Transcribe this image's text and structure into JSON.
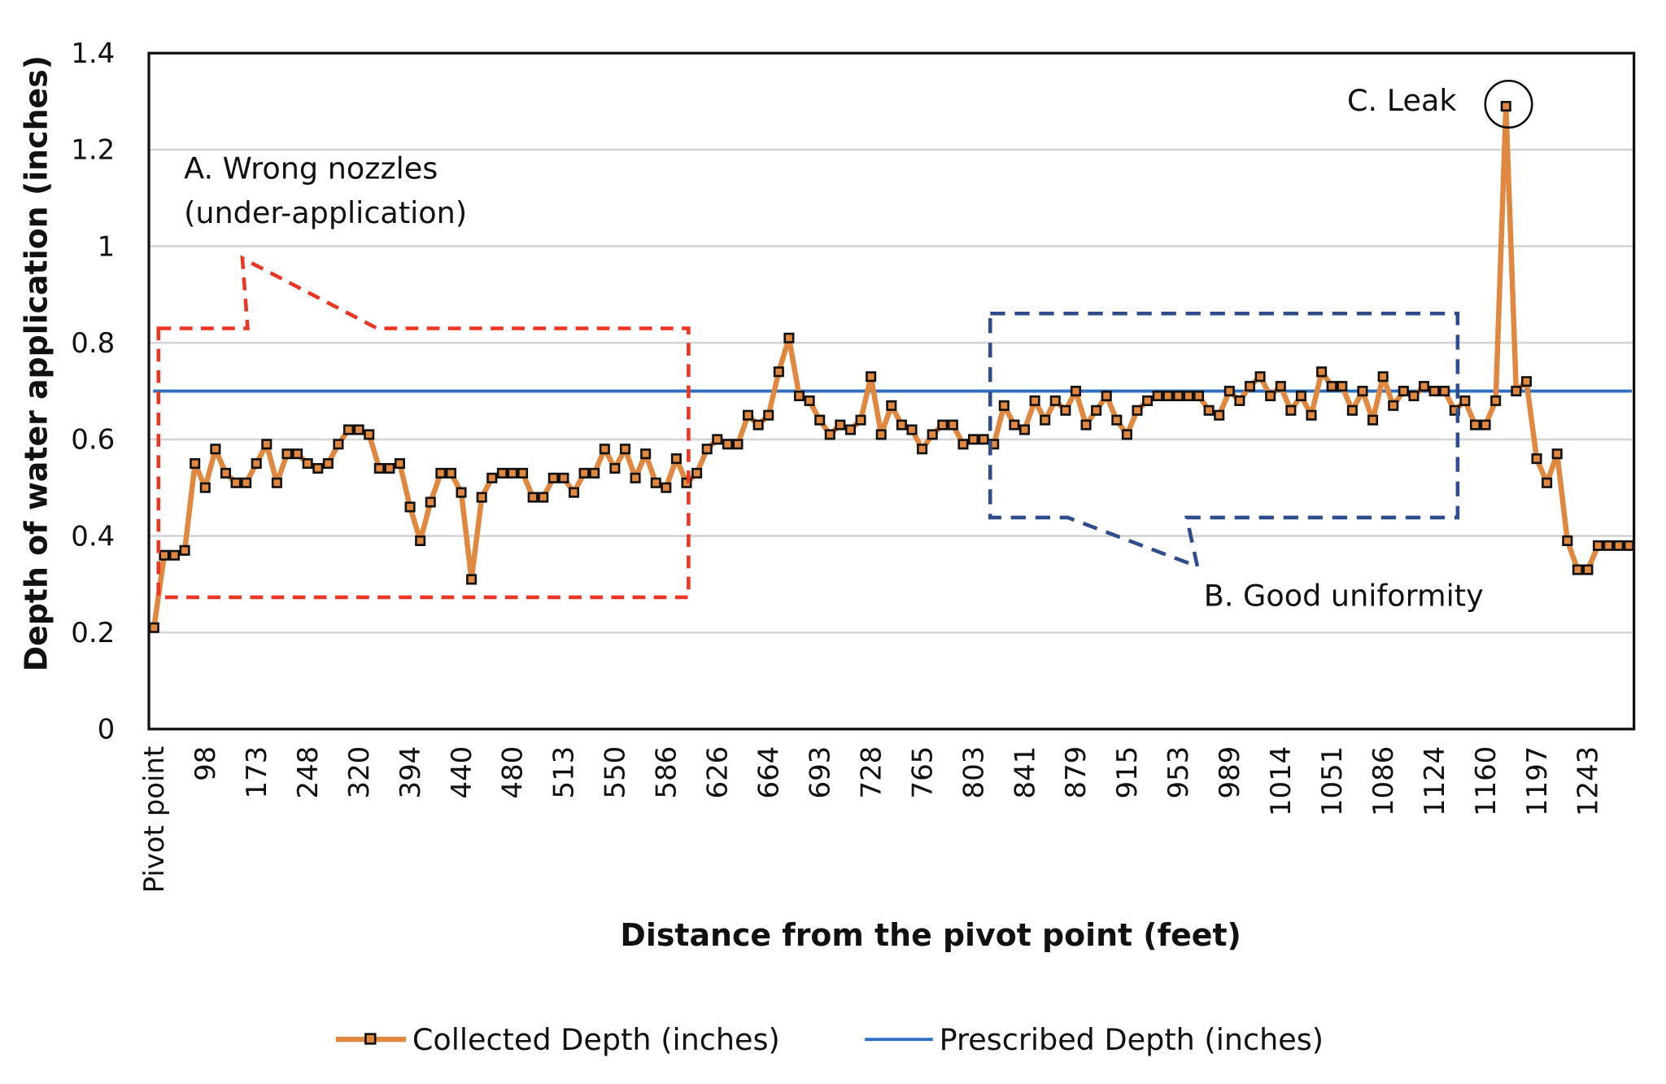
{
  "chart_data": {
    "type": "line",
    "xlabel": "Distance from the pivot point (feet)",
    "ylabel": "Depth of water application (inches)",
    "ylim": [
      0,
      1.4
    ],
    "yticks": [
      "0",
      "0.2",
      "0.4",
      "0.6",
      "0.8",
      "1",
      "1.2",
      "1.4"
    ],
    "grid": true,
    "legend_position": "bottom",
    "x_tick_labels": [
      "Pivot point",
      "98",
      "173",
      "248",
      "320",
      "394",
      "440",
      "480",
      "513",
      "550",
      "586",
      "626",
      "664",
      "693",
      "728",
      "765",
      "803",
      "841",
      "879",
      "915",
      "953",
      "989",
      "1014",
      "1051",
      "1086",
      "1124",
      "1160",
      "1197",
      "1243"
    ],
    "series": [
      {
        "name": "Collected Depth (inches)",
        "color": "#E0883F",
        "marker": "square",
        "values": [
          0.21,
          0.36,
          0.36,
          0.37,
          0.55,
          0.5,
          0.58,
          0.53,
          0.51,
          0.51,
          0.55,
          0.59,
          0.51,
          0.57,
          0.57,
          0.55,
          0.54,
          0.55,
          0.59,
          0.62,
          0.62,
          0.61,
          0.54,
          0.54,
          0.55,
          0.46,
          0.39,
          0.47,
          0.53,
          0.53,
          0.49,
          0.31,
          0.48,
          0.52,
          0.53,
          0.53,
          0.53,
          0.48,
          0.48,
          0.52,
          0.52,
          0.49,
          0.53,
          0.53,
          0.58,
          0.54,
          0.58,
          0.52,
          0.57,
          0.51,
          0.5,
          0.56,
          0.51,
          0.53,
          0.58,
          0.6,
          0.59,
          0.59,
          0.65,
          0.63,
          0.65,
          0.74,
          0.81,
          0.69,
          0.68,
          0.64,
          0.61,
          0.63,
          0.62,
          0.64,
          0.73,
          0.61,
          0.67,
          0.63,
          0.62,
          0.58,
          0.61,
          0.63,
          0.63,
          0.59,
          0.6,
          0.6,
          0.59,
          0.67,
          0.63,
          0.62,
          0.68,
          0.64,
          0.68,
          0.66,
          0.7,
          0.63,
          0.66,
          0.69,
          0.64,
          0.61,
          0.66,
          0.68,
          0.69,
          0.69,
          0.69,
          0.69,
          0.69,
          0.66,
          0.65,
          0.7,
          0.68,
          0.71,
          0.73,
          0.69,
          0.71,
          0.66,
          0.69,
          0.65,
          0.74,
          0.71,
          0.71,
          0.66,
          0.7,
          0.64,
          0.73,
          0.67,
          0.7,
          0.69,
          0.71,
          0.7,
          0.7,
          0.66,
          0.68,
          0.63,
          0.63,
          0.68,
          1.29,
          0.7,
          0.72,
          0.56,
          0.51,
          0.57,
          0.39,
          0.33,
          0.33,
          0.38,
          0.38,
          0.38,
          0.38
        ]
      },
      {
        "name": "Prescribed Depth (inches)",
        "color": "#2E6FC0",
        "constant": 0.7
      }
    ],
    "annotations": {
      "a_line1": "A. Wrong nozzles",
      "a_line2": "(under-application)",
      "a_color": "#EE3524",
      "b": "B. Good uniformity",
      "b_color": "#2F4C8C",
      "c": "C. Leak"
    }
  }
}
